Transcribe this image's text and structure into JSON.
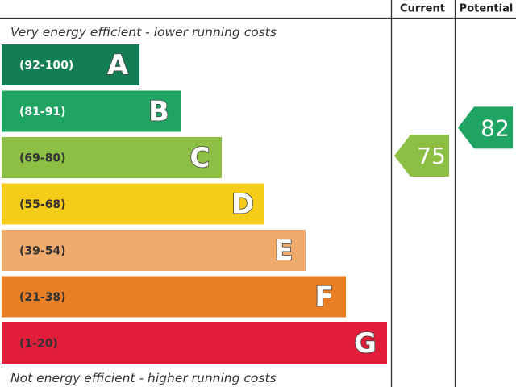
{
  "chart_data": {
    "type": "bar",
    "columns": {
      "current": "Current",
      "potential": "Potential"
    },
    "top_caption": "Very energy efficient - lower running costs",
    "bottom_caption": "Not energy efficient - higher running costs",
    "bands": [
      {
        "range": "(92-100)",
        "letter": "A",
        "min": 92,
        "max": 100,
        "color": "#137e55",
        "range_color": "#ffffff"
      },
      {
        "range": "(81-91)",
        "letter": "B",
        "min": 81,
        "max": 91,
        "color": "#1fa463",
        "range_color": "#ffffff"
      },
      {
        "range": "(69-80)",
        "letter": "C",
        "min": 69,
        "max": 80,
        "color": "#8cbf44",
        "range_color": "#333333"
      },
      {
        "range": "(55-68)",
        "letter": "D",
        "min": 55,
        "max": 68,
        "color": "#f5cc17",
        "range_color": "#333333"
      },
      {
        "range": "(39-54)",
        "letter": "E",
        "min": 39,
        "max": 54,
        "color": "#f0aa6b",
        "range_color": "#333333"
      },
      {
        "range": "(21-38)",
        "letter": "F",
        "min": 21,
        "max": 38,
        "color": "#ea7e25",
        "range_color": "#333333"
      },
      {
        "range": "(1-20)",
        "letter": "G",
        "min": 1,
        "max": 20,
        "color": "#e11d3a",
        "range_color": "#333333"
      }
    ],
    "current": {
      "value": 75,
      "label": "75",
      "color": "#8cbf44"
    },
    "potential": {
      "value": 82,
      "label": "82",
      "color": "#1fa463"
    }
  }
}
